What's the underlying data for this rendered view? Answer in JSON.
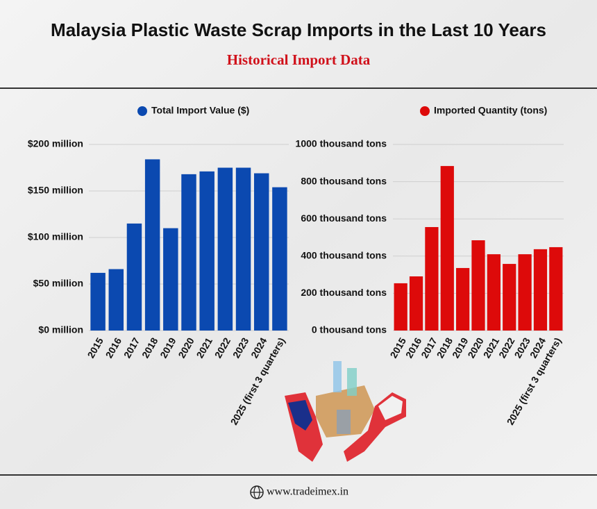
{
  "header": {
    "title": "Malaysia Plastic Waste Scrap Imports in the Last 10 Years",
    "subtitle": "Historical Import Data"
  },
  "footer": {
    "website": "www.tradeimex.in"
  },
  "chart_data": [
    {
      "type": "bar",
      "categories": [
        "2015",
        "2016",
        "2017",
        "2018",
        "2019",
        "2020",
        "2021",
        "2022",
        "2023",
        "2024",
        "2025 (first 3 quarters)"
      ],
      "series": [
        {
          "name": "Total Import Value ($)",
          "color": "#0b49b0",
          "values": [
            62,
            66,
            115,
            184,
            110,
            168,
            171,
            175,
            175,
            169,
            154
          ]
        }
      ],
      "ylim": [
        0,
        200
      ],
      "yticks": [
        {
          "value": 0,
          "label": "$0 million"
        },
        {
          "value": 50,
          "label": "$50 million"
        },
        {
          "value": 100,
          "label": "$100 million"
        },
        {
          "value": 150,
          "label": "$150 million"
        },
        {
          "value": 200,
          "label": "$200 million"
        }
      ],
      "grid": true
    },
    {
      "type": "bar",
      "categories": [
        "2015",
        "2016",
        "2017",
        "2018",
        "2019",
        "2020",
        "2021",
        "2022",
        "2023",
        "2024",
        "2025 (first 3 quarters)"
      ],
      "series": [
        {
          "name": "Imported Quantity (tons)",
          "color": "#dd0a0a",
          "values": [
            254,
            291,
            556,
            884,
            336,
            485,
            410,
            358,
            410,
            437,
            448
          ]
        }
      ],
      "ylim": [
        0,
        1000
      ],
      "yticks": [
        {
          "value": 0,
          "label": "0 thousand tons"
        },
        {
          "value": 200,
          "label": "200 thousand tons"
        },
        {
          "value": 400,
          "label": "400 thousand tons"
        },
        {
          "value": 600,
          "label": "600 thousand tons"
        },
        {
          "value": 800,
          "label": "800 thousand tons"
        },
        {
          "value": 1000,
          "label": "1000 thousand tons"
        }
      ],
      "grid": true
    }
  ]
}
